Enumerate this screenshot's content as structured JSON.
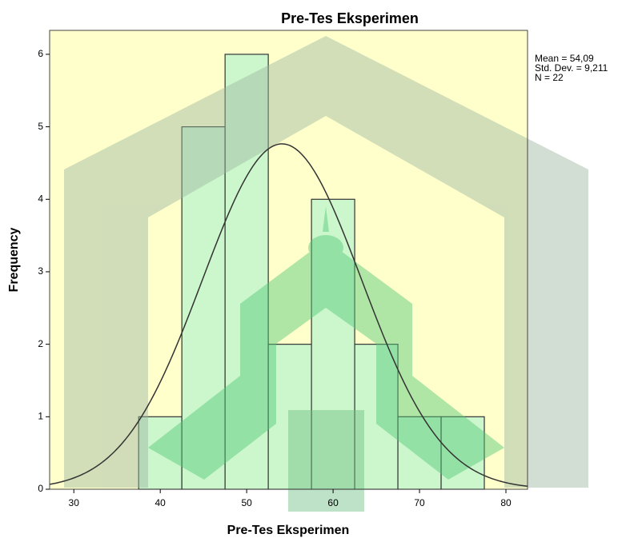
{
  "chart_data": {
    "type": "histogram",
    "title": "Pre-Tes Eksperimen",
    "x_label": "Pre-Tes Eksperimen",
    "y_label": "Frequency",
    "bins": [
      37.5,
      42.5,
      47.5,
      52.5,
      57.5,
      62.5,
      67.5,
      72.5,
      77.5
    ],
    "counts": [
      1,
      5,
      6,
      2,
      4,
      2,
      1,
      1
    ],
    "color": "#ccf7cc",
    "background": "#ffffcc",
    "xlim": [
      27.2,
      82.5
    ],
    "ylim": [
      0,
      6.33
    ],
    "xticks": [
      30,
      40,
      50,
      60,
      70,
      80
    ],
    "yticks": [
      0,
      1,
      2,
      3,
      4,
      5,
      6
    ],
    "stats": {
      "mean": {
        "value": 54.09,
        "label": "Mean = 54,09"
      },
      "std_dev": {
        "value": 9.211,
        "label": "Std. Dev. = 9,211"
      },
      "n": {
        "value": 22,
        "label": "N = 22"
      }
    }
  }
}
